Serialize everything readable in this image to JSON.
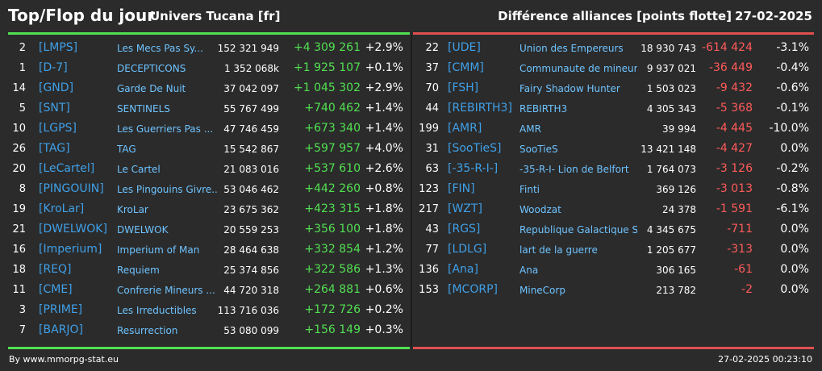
{
  "header": {
    "title": "Top/Flop du jour",
    "subtitle": "Univers Tucana [fr]",
    "metric": "Différence alliances [points flotte]",
    "date": "27-02-2025"
  },
  "colors": {
    "positive": "#52e052",
    "negative": "#ff5a5a",
    "tag": "#3fa0e8",
    "name": "#6ec3ff"
  },
  "top": [
    {
      "rank": "2",
      "tag": "[LMPS]",
      "name": "Les Mecs Pas Sy...",
      "score": "152 321 949",
      "diff": "+4 309 261",
      "pct": "+2.9%"
    },
    {
      "rank": "1",
      "tag": "[D-7]",
      "name": "DECEPTICONS",
      "score": "1 352 068k",
      "diff": "+1 925 107",
      "pct": "+0.1%"
    },
    {
      "rank": "14",
      "tag": "[GND]",
      "name": "Garde De Nuit",
      "score": "37 042 097",
      "diff": "+1 045 302",
      "pct": "+2.9%"
    },
    {
      "rank": "5",
      "tag": "[SNT]",
      "name": "SENTINELS",
      "score": "55 767 499",
      "diff": "+740 462",
      "pct": "+1.4%"
    },
    {
      "rank": "10",
      "tag": "[LGPS]",
      "name": "Les Guerriers Pas ...",
      "score": "47 746 459",
      "diff": "+673 340",
      "pct": "+1.4%"
    },
    {
      "rank": "26",
      "tag": "[TAG]",
      "name": "TAG",
      "score": "15 542 867",
      "diff": "+597 957",
      "pct": "+4.0%"
    },
    {
      "rank": "20",
      "tag": "[LeCartel]",
      "name": "Le Cartel",
      "score": "21 083 016",
      "diff": "+537 610",
      "pct": "+2.6%"
    },
    {
      "rank": "8",
      "tag": "[PINGOUIN]",
      "name": "Les Pingouins Givre...",
      "score": "53 046 462",
      "diff": "+442 260",
      "pct": "+0.8%"
    },
    {
      "rank": "19",
      "tag": "[KroLar]",
      "name": "KroLar",
      "score": "23 675 362",
      "diff": "+423 315",
      "pct": "+1.8%"
    },
    {
      "rank": "21",
      "tag": "[DWELWOK]",
      "name": "DWELWOK",
      "score": "20 559 253",
      "diff": "+356 100",
      "pct": "+1.8%"
    },
    {
      "rank": "16",
      "tag": "[Imperium]",
      "name": "Imperium of Man",
      "score": "28 464 638",
      "diff": "+332 854",
      "pct": "+1.2%"
    },
    {
      "rank": "18",
      "tag": "[REQ]",
      "name": "Requiem",
      "score": "25 374 856",
      "diff": "+322 586",
      "pct": "+1.3%"
    },
    {
      "rank": "11",
      "tag": "[CME]",
      "name": "Confrerie Mineurs ...",
      "score": "44 720 318",
      "diff": "+264 881",
      "pct": "+0.6%"
    },
    {
      "rank": "3",
      "tag": "[PRIME]",
      "name": "Les Irreductibles",
      "score": "113 716 036",
      "diff": "+172 726",
      "pct": "+0.2%"
    },
    {
      "rank": "7",
      "tag": "[BARJO]",
      "name": "Resurrection",
      "score": "53 080 099",
      "diff": "+156 149",
      "pct": "+0.3%"
    }
  ],
  "flop": [
    {
      "rank": "22",
      "tag": "[UDE]",
      "name": "Union des Empereurs",
      "score": "18 930 743",
      "diff": "-614 424",
      "pct": "-3.1%"
    },
    {
      "rank": "37",
      "tag": "[CMM]",
      "name": "Communaute de mineurs",
      "score": "9 937 021",
      "diff": "-36 449",
      "pct": "-0.4%"
    },
    {
      "rank": "70",
      "tag": "[FSH]",
      "name": "Fairy Shadow Hunter",
      "score": "1 503 023",
      "diff": "-9 432",
      "pct": "-0.6%"
    },
    {
      "rank": "44",
      "tag": "[REBIRTH3]",
      "name": "REBIRTH3",
      "score": "4 305 343",
      "diff": "-5 368",
      "pct": "-0.1%"
    },
    {
      "rank": "199",
      "tag": "[AMR]",
      "name": "AMR",
      "score": "39 994",
      "diff": "-4 445",
      "pct": "-10.0%"
    },
    {
      "rank": "31",
      "tag": "[SooTieS]",
      "name": "SooTieS",
      "score": "13 421 148",
      "diff": "-4 427",
      "pct": "0.0%"
    },
    {
      "rank": "63",
      "tag": "[-35-R-I-]",
      "name": "-35-R-I- Lion de Belfort",
      "score": "1 764 073",
      "diff": "-3 126",
      "pct": "-0.2%"
    },
    {
      "rank": "123",
      "tag": "[FIN]",
      "name": "Finti",
      "score": "369 126",
      "diff": "-3 013",
      "pct": "-0.8%"
    },
    {
      "rank": "217",
      "tag": "[WZT]",
      "name": "Woodzat",
      "score": "24 378",
      "diff": "-1 591",
      "pct": "-6.1%"
    },
    {
      "rank": "43",
      "tag": "[RGS]",
      "name": "Republique Galactique S",
      "score": "4 345 675",
      "diff": "-711",
      "pct": "0.0%"
    },
    {
      "rank": "77",
      "tag": "[LDLG]",
      "name": "lart de la guerre",
      "score": "1 205 677",
      "diff": "-313",
      "pct": "0.0%"
    },
    {
      "rank": "136",
      "tag": "[Ana]",
      "name": "Ana",
      "score": "306 165",
      "diff": "-61",
      "pct": "0.0%"
    },
    {
      "rank": "153",
      "tag": "[MCORP]",
      "name": "MineCorp",
      "score": "213 782",
      "diff": "-2",
      "pct": "0.0%"
    }
  ],
  "footer": {
    "source": "By www.mmorpg-stat.eu",
    "timestamp": "27-02-2025 00:23:10"
  }
}
